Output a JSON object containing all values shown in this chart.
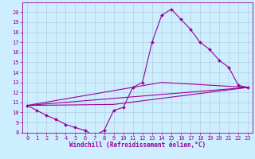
{
  "title": "",
  "xlabel": "Windchill (Refroidissement éolien,°C)",
  "ylabel": "",
  "background_color": "#cceeff",
  "line_color": "#990099",
  "marker": "D",
  "markersize": 2.0,
  "linewidth": 0.8,
  "ylim": [
    8,
    21
  ],
  "xlim": [
    -0.5,
    23.5
  ],
  "yticks": [
    8,
    9,
    10,
    11,
    12,
    13,
    14,
    15,
    16,
    17,
    18,
    19,
    20
  ],
  "xticks": [
    0,
    1,
    2,
    3,
    4,
    5,
    6,
    7,
    8,
    9,
    10,
    11,
    12,
    13,
    14,
    15,
    16,
    17,
    18,
    19,
    20,
    21,
    22,
    23
  ],
  "series": [
    {
      "x": [
        0,
        1,
        2,
        3,
        4,
        5,
        6,
        7,
        8,
        9,
        10,
        11,
        12,
        13,
        14,
        15,
        16,
        17,
        18,
        19,
        20,
        21,
        22,
        23
      ],
      "y": [
        10.7,
        10.2,
        9.7,
        9.3,
        8.8,
        8.5,
        8.2,
        7.7,
        8.2,
        10.2,
        10.5,
        12.5,
        13.0,
        17.0,
        19.7,
        20.3,
        19.3,
        18.3,
        17.0,
        16.3,
        15.2,
        14.5,
        12.7,
        12.5
      ],
      "markers": true
    },
    {
      "x": [
        0,
        23
      ],
      "y": [
        10.7,
        12.5
      ],
      "markers": false
    },
    {
      "x": [
        0,
        9,
        23
      ],
      "y": [
        10.7,
        10.8,
        12.5
      ],
      "markers": false
    },
    {
      "x": [
        0,
        14,
        23
      ],
      "y": [
        10.7,
        13.0,
        12.5
      ],
      "markers": false
    }
  ],
  "tick_fontsize": 5.0,
  "xlabel_fontsize": 5.5,
  "grid_color": "#aabbcc",
  "grid_alpha": 0.8,
  "grid_linewidth": 0.4
}
